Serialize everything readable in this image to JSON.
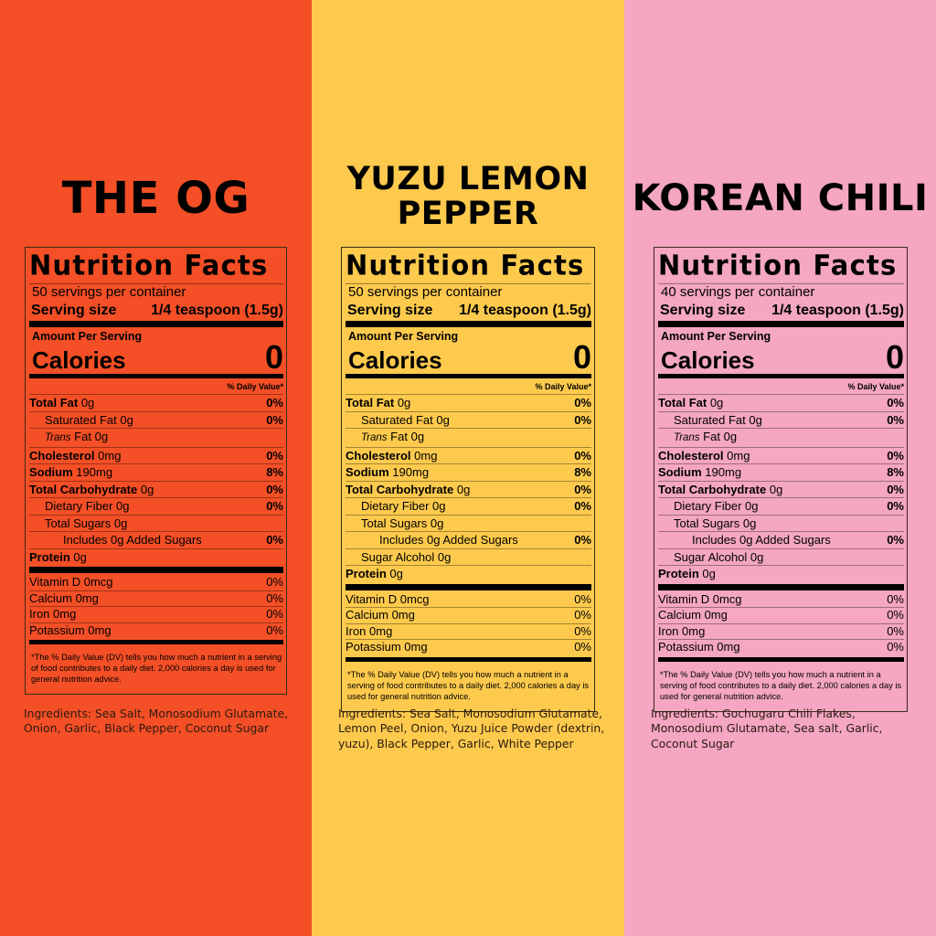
{
  "colors": {
    "og": "#F44F26",
    "yuzu": "#FECA4D",
    "korean": "#F4A6C2"
  },
  "products": [
    {
      "title_lines": [
        "THE OG"
      ],
      "servings": "50 servings per container",
      "serving_size_label": "Serving size",
      "serving_size": "1/4 teaspoon (1.5g)",
      "amount_per_serving": "Amount Per Serving",
      "calories_label": "Calories",
      "calories": "0",
      "dv_header": "% Daily Value*",
      "nutrients": [
        {
          "name": "Total Fat",
          "amount": "0g",
          "dv": "0%",
          "bold": true,
          "indent": 0
        },
        {
          "name": "Saturated Fat",
          "amount": "0g",
          "dv": "0%",
          "indent": 1
        },
        {
          "name": "Trans",
          "name_rest": "Fat",
          "amount": "0g",
          "dv": "",
          "indent": 1,
          "italic": true
        },
        {
          "name": "Cholesterol",
          "amount": "0mg",
          "dv": "0%",
          "bold": true,
          "indent": 0
        },
        {
          "name": "Sodium",
          "amount": "190mg",
          "dv": "8%",
          "bold": true,
          "indent": 0
        },
        {
          "name": "Total Carbohydrate",
          "amount": "0g",
          "dv": "0%",
          "bold": true,
          "indent": 0
        },
        {
          "name": "Dietary Fiber",
          "amount": "0g",
          "dv": "0%",
          "indent": 1
        },
        {
          "name": "Total Sugars",
          "amount": "0g",
          "dv": "",
          "indent": 1
        },
        {
          "name": "Includes 0g Added Sugars",
          "amount": "",
          "dv": "0%",
          "indent": 2
        },
        {
          "name": "Protein",
          "amount": "0g",
          "dv": "",
          "bold": true,
          "indent": 0
        }
      ],
      "vitamins": [
        {
          "name": "Vitamin D 0mcg",
          "dv": "0%"
        },
        {
          "name": "Calcium 0mg",
          "dv": "0%"
        },
        {
          "name": "Iron 0mg",
          "dv": "0%"
        },
        {
          "name": "Potassium 0mg",
          "dv": "0%"
        }
      ],
      "footnote": "The % Daily Value (DV) tells you how much a nutrient in a serving of food contributes to a daily diet. 2,000 calories a day is used for general nutrition advice.",
      "ingredients": "Ingredients: Sea Salt, Monosodium Glutamate, Onion, Garlic, Black Pepper, Coconut Sugar"
    },
    {
      "title_lines": [
        "YUZU LEMON",
        "PEPPER"
      ],
      "servings": "50 servings per container",
      "serving_size_label": "Serving size",
      "serving_size": "1/4 teaspoon (1.5g)",
      "amount_per_serving": "Amount Per Serving",
      "calories_label": "Calories",
      "calories": "0",
      "dv_header": "% Daily Value*",
      "nutrients": [
        {
          "name": "Total Fat",
          "amount": "0g",
          "dv": "0%",
          "bold": true,
          "indent": 0
        },
        {
          "name": "Saturated Fat",
          "amount": "0g",
          "dv": "0%",
          "indent": 1
        },
        {
          "name": "Trans",
          "name_rest": "Fat",
          "amount": "0g",
          "dv": "",
          "indent": 1,
          "italic": true
        },
        {
          "name": "Cholesterol",
          "amount": "0mg",
          "dv": "0%",
          "bold": true,
          "indent": 0
        },
        {
          "name": "Sodium",
          "amount": "190mg",
          "dv": "8%",
          "bold": true,
          "indent": 0
        },
        {
          "name": "Total Carbohydrate",
          "amount": "0g",
          "dv": "0%",
          "bold": true,
          "indent": 0
        },
        {
          "name": "Dietary Fiber",
          "amount": "0g",
          "dv": "0%",
          "indent": 1
        },
        {
          "name": "Total Sugars",
          "amount": "0g",
          "dv": "",
          "indent": 1
        },
        {
          "name": "Includes 0g Added Sugars",
          "amount": "",
          "dv": "0%",
          "indent": 2
        },
        {
          "name": "Sugar Alcohol",
          "amount": "0g",
          "dv": "",
          "indent": 1
        },
        {
          "name": "Protein",
          "amount": "0g",
          "dv": "",
          "bold": true,
          "indent": 0
        }
      ],
      "vitamins": [
        {
          "name": "Vitamin D 0mcg",
          "dv": "0%"
        },
        {
          "name": "Calcium 0mg",
          "dv": "0%"
        },
        {
          "name": "Iron 0mg",
          "dv": "0%"
        },
        {
          "name": "Potassium 0mg",
          "dv": "0%"
        }
      ],
      "footnote": "The % Daily Value (DV) tells you how much a nutrient in a serving of food contributes to a daily diet. 2,000 calories a day is used for general nutrition advice.",
      "ingredients": "Ingredients: Sea Salt, Monosodium Glutamate, Lemon Peel, Onion, Yuzu Juice Powder (dextrin, yuzu), Black Pepper, Garlic, White Pepper"
    },
    {
      "title_lines": [
        "KOREAN CHILI"
      ],
      "servings": "40 servings per container",
      "serving_size_label": "Serving size",
      "serving_size": "1/4 teaspoon (1.5g)",
      "amount_per_serving": "Amount Per Serving",
      "calories_label": "Calories",
      "calories": "0",
      "dv_header": "% Daily Value*",
      "nutrients": [
        {
          "name": "Total Fat",
          "amount": "0g",
          "dv": "0%",
          "bold": true,
          "indent": 0
        },
        {
          "name": "Saturated Fat",
          "amount": "0g",
          "dv": "0%",
          "indent": 1
        },
        {
          "name": "Trans",
          "name_rest": "Fat",
          "amount": "0g",
          "dv": "",
          "indent": 1,
          "italic": true
        },
        {
          "name": "Cholesterol",
          "amount": "0mg",
          "dv": "0%",
          "bold": true,
          "indent": 0
        },
        {
          "name": "Sodium",
          "amount": "190mg",
          "dv": "8%",
          "bold": true,
          "indent": 0
        },
        {
          "name": "Total Carbohydrate",
          "amount": "0g",
          "dv": "0%",
          "bold": true,
          "indent": 0
        },
        {
          "name": "Dietary Fiber",
          "amount": "0g",
          "dv": "0%",
          "indent": 1
        },
        {
          "name": "Total Sugars",
          "amount": "0g",
          "dv": "",
          "indent": 1
        },
        {
          "name": "Includes 0g Added Sugars",
          "amount": "",
          "dv": "0%",
          "indent": 2
        },
        {
          "name": "Sugar Alcohol",
          "amount": "0g",
          "dv": "",
          "indent": 1
        },
        {
          "name": "Protein",
          "amount": "0g",
          "dv": "",
          "bold": true,
          "indent": 0
        }
      ],
      "vitamins": [
        {
          "name": "Vitamin D 0mcg",
          "dv": "0%"
        },
        {
          "name": "Calcium 0mg",
          "dv": "0%"
        },
        {
          "name": "Iron 0mg",
          "dv": "0%"
        },
        {
          "name": "Potassium 0mg",
          "dv": "0%"
        }
      ],
      "footnote": "The % Daily Value (DV) tells you how much a nutrient in a serving of food contributes to a daily diet. 2,000 calories a day is used for general nutrition advice.",
      "ingredients": "Ingredients: Gochugaru Chili Flakes, Monosodium Glutamate, Sea salt, Garlic, Coconut Sugar"
    }
  ],
  "label_title": "Nutrition Facts"
}
